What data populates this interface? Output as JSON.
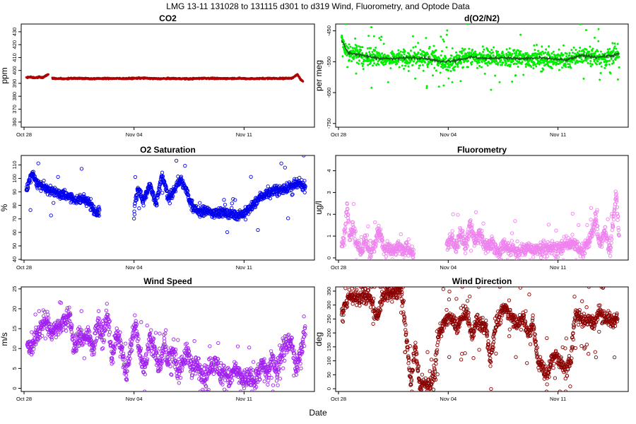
{
  "figure": {
    "title": "LMG   13-11     131028 to 131115     d301 to d319   Wind, Fluorometry, and Optode Data",
    "xlabel": "Date"
  },
  "chart_data": [
    {
      "id": "co2",
      "type": "scatter",
      "title": "CO2",
      "ylabel": "ppm",
      "color": "#b00000",
      "point_style": "filled",
      "ylim": [
        356,
        436
      ],
      "yticks": [
        360,
        370,
        380,
        390,
        400,
        410,
        420,
        430
      ],
      "ytick_labels": [
        "360",
        "370",
        "380",
        "390",
        "400",
        "410",
        "420",
        "430"
      ],
      "xlim": [
        0,
        18.3
      ],
      "xtick_values": [
        0,
        7,
        14
      ],
      "xtick_labels": [
        "Oct 28",
        "Nov 04",
        "Nov 11"
      ],
      "segments": [
        {
          "x": [
            0.15,
            0.4,
            0.7,
            1.0,
            1.2,
            1.4,
            1.55
          ],
          "y": [
            394.5,
            395,
            394.2,
            395,
            394.5,
            396,
            397
          ]
        },
        {
          "x": [
            1.8,
            2.5,
            3.5,
            4.5,
            5.5,
            6.5,
            7.5,
            8.5,
            9.5,
            10.5,
            11.5,
            12.5,
            13.5,
            14.5,
            15.5,
            16.5,
            17.1,
            17.4,
            17.6,
            17.75
          ],
          "y": [
            393.8,
            393.5,
            394.0,
            393.6,
            393.8,
            393.7,
            394.1,
            393.6,
            393.8,
            393.5,
            394.0,
            393.7,
            393.9,
            393.6,
            393.9,
            393.8,
            394.2,
            397.0,
            393.0,
            391.2
          ]
        }
      ],
      "noise": 0.4,
      "outlier_rate": 0
    },
    {
      "id": "o2n2",
      "type": "scatter",
      "title": "d(O2/N2)",
      "ylabel": "per meg",
      "color": "#00ee00",
      "point_style": "filled",
      "ylim": [
        -762,
        -428
      ],
      "yticks": [
        -450,
        -550,
        -650,
        -750
      ],
      "ytick_labels": [
        "-450",
        "-550",
        "-650",
        "-750"
      ],
      "xlim": [
        0,
        18.3
      ],
      "xtick_values": [
        0,
        7,
        14
      ],
      "xtick_labels": [
        "Oct 28",
        "Nov 04",
        "Nov 11"
      ],
      "segments": [
        {
          "x": [
            0.2,
            0.35,
            0.6,
            1.0,
            1.5,
            2.0,
            2.5,
            3.0,
            3.5,
            4.0,
            4.5,
            5.0,
            5.5,
            6.0,
            6.5,
            7.0,
            7.5,
            8.0,
            8.5,
            9.0,
            9.5,
            10.0,
            10.5,
            11.0,
            11.5,
            12.0,
            12.5,
            13.0,
            13.5,
            14.0,
            14.5,
            15.0,
            15.5,
            16.0,
            16.5,
            17.0,
            17.5,
            17.9
          ],
          "y": [
            -475,
            -505,
            -520,
            -528,
            -530,
            -535,
            -538,
            -540,
            -541,
            -539,
            -536,
            -540,
            -538,
            -535,
            -550,
            -558,
            -545,
            -540,
            -535,
            -545,
            -540,
            -538,
            -536,
            -540,
            -541,
            -540,
            -538,
            -543,
            -540,
            -542,
            -545,
            -540,
            -530,
            -528,
            -535,
            -540,
            -530,
            -522
          ]
        }
      ],
      "noise": 20,
      "outlier_rate": 0.07,
      "outlier_spread": 90,
      "trend_line": {
        "color": "#1a5a1a",
        "x": [
          0.2,
          0.6,
          1.5,
          2.5,
          3.5,
          4.5,
          5.5,
          6.5,
          7.5,
          8.5,
          9.5,
          10.5,
          11.5,
          12.5,
          13.5,
          14.5,
          15.5,
          16.5,
          17.5,
          17.9
        ],
        "y": [
          -480,
          -520,
          -530,
          -538,
          -541,
          -536,
          -538,
          -550,
          -545,
          -535,
          -540,
          -536,
          -541,
          -538,
          -540,
          -545,
          -530,
          -535,
          -530,
          -525
        ]
      }
    },
    {
      "id": "o2sat",
      "type": "scatter",
      "title": "O2 Saturation",
      "ylabel": "%",
      "color": "#0000ee",
      "point_style": "open",
      "ylim": [
        39.5,
        117
      ],
      "yticks": [
        40,
        50,
        60,
        70,
        80,
        90,
        100,
        110
      ],
      "ytick_labels": [
        "40",
        "50",
        "60",
        "70",
        "80",
        "90",
        "100",
        "110"
      ],
      "xlim": [
        0,
        18.3
      ],
      "xtick_values": [
        0,
        7,
        14
      ],
      "xtick_labels": [
        "Oct 28",
        "Nov 04",
        "Nov 11"
      ],
      "segments": [
        {
          "x": [
            0.15,
            0.3,
            0.5,
            0.7,
            1.0,
            1.5,
            2.0,
            2.5,
            3.0,
            3.5,
            4.0,
            4.3,
            4.6,
            4.8
          ],
          "y": [
            91,
            97,
            103,
            99,
            95,
            92,
            90,
            88,
            86,
            84,
            84,
            80,
            74,
            78
          ]
        },
        {
          "x": [
            7.0,
            7.1,
            7.3,
            7.6,
            8.0,
            8.4,
            8.8,
            9.2,
            9.6,
            10.0,
            10.4,
            10.8,
            11.2,
            11.6,
            12.0,
            12.5,
            13.0,
            13.5,
            14.0,
            14.5,
            15.0,
            15.5,
            16.0,
            16.5,
            17.0,
            17.5,
            17.9
          ],
          "y": [
            72,
            85,
            93,
            82,
            96,
            80,
            103,
            85,
            92,
            100,
            88,
            77,
            75,
            76,
            74,
            75,
            74,
            73,
            74,
            79,
            86,
            89,
            91,
            92,
            94,
            96,
            94
          ]
        }
      ],
      "noise": 2.5,
      "outlier_rate": 0.03,
      "outlier_spread": 25
    },
    {
      "id": "fluoro",
      "type": "scatter",
      "title": "Fluorometry",
      "ylabel": "ug/l",
      "color": "#ee82ee",
      "point_style": "open",
      "ylim": [
        -0.1,
        4.7
      ],
      "yticks": [
        0,
        1,
        2,
        3,
        4
      ],
      "ytick_labels": [
        "0",
        "1",
        "2",
        "3",
        "4"
      ],
      "xlim": [
        0,
        18.3
      ],
      "xtick_values": [
        0,
        7,
        14
      ],
      "xtick_labels": [
        "Oct 28",
        "Nov 04",
        "Nov 11"
      ],
      "segments": [
        {
          "x": [
            0.2,
            0.4,
            0.55,
            0.7,
            0.9,
            1.1,
            1.4,
            1.7,
            2.0,
            2.3,
            2.6,
            2.9,
            3.2,
            3.5,
            3.8,
            4.1,
            4.4,
            4.8
          ],
          "y": [
            0.6,
            1.2,
            2.6,
            0.9,
            1.5,
            0.7,
            0.3,
            0.8,
            0.2,
            0.6,
            1.3,
            0.3,
            0.5,
            0.2,
            0.6,
            0.3,
            0.5,
            0.2
          ]
        },
        {
          "x": [
            6.9,
            7.2,
            7.5,
            7.8,
            8.1,
            8.4,
            8.7,
            9.0,
            9.4,
            9.8,
            10.2,
            10.6,
            11.0,
            11.5,
            12.0,
            12.5,
            13.0,
            13.5,
            14.0,
            14.5,
            15.0,
            15.5,
            16.0,
            16.4,
            16.7,
            17.0,
            17.3,
            17.5,
            17.7,
            17.9
          ],
          "y": [
            0.5,
            0.9,
            0.4,
            1.2,
            0.5,
            1.5,
            0.7,
            1.1,
            0.5,
            0.7,
            0.3,
            0.6,
            0.4,
            0.3,
            0.5,
            0.3,
            0.4,
            0.5,
            0.4,
            0.6,
            0.7,
            0.3,
            0.8,
            1.8,
            0.6,
            1.2,
            0.4,
            1.5,
            3.0,
            0.9
          ]
        }
      ],
      "noise": 0.22,
      "outlier_rate": 0.05,
      "outlier_spread": 1.2
    },
    {
      "id": "wspd",
      "type": "scatter",
      "title": "Wind Speed",
      "ylabel": "m/s",
      "color": "#a020f0",
      "point_style": "open",
      "ylim": [
        -0.8,
        25.5
      ],
      "yticks": [
        0,
        5,
        10,
        15,
        20,
        25
      ],
      "ytick_labels": [
        "0",
        "5",
        "10",
        "15",
        "20",
        "25"
      ],
      "xlim": [
        0,
        18.3
      ],
      "xtick_values": [
        0,
        7,
        14
      ],
      "xtick_labels": [
        "Oct 28",
        "Nov 04",
        "Nov 11"
      ],
      "segments": [
        {
          "x": [
            0.2,
            0.5,
            0.8,
            1.1,
            1.4,
            1.7,
            2.0,
            2.3,
            2.6,
            2.9,
            3.2,
            3.5,
            3.8,
            4.1,
            4.4,
            4.7,
            5.0,
            5.3,
            5.6,
            5.9,
            6.2,
            6.5,
            6.8,
            7.1,
            7.4,
            7.7,
            8.0,
            8.3,
            8.6,
            8.9,
            9.2,
            9.5,
            9.8,
            10.1,
            10.4,
            10.7,
            11.0,
            11.3,
            11.6,
            11.9,
            12.2,
            12.5,
            12.8,
            13.1,
            13.4,
            13.7,
            14.0,
            14.3,
            14.6,
            14.9,
            15.2,
            15.5,
            15.8,
            16.1,
            16.4,
            16.7,
            17.0,
            17.3,
            17.6,
            17.9
          ],
          "y": [
            11,
            10,
            13,
            15,
            17,
            14,
            15,
            16,
            17,
            18,
            10,
            13,
            12,
            14,
            10,
            16,
            13,
            19,
            8,
            14,
            10,
            3,
            11,
            16,
            8,
            5,
            13,
            10,
            5,
            11,
            7,
            9,
            4,
            7,
            9,
            5,
            6,
            4,
            3,
            6,
            7,
            3,
            4,
            2,
            5,
            3,
            2,
            3,
            2,
            4,
            6,
            3,
            8,
            4,
            10,
            11,
            12,
            5,
            9,
            15
          ]
        }
      ],
      "noise": 1.8,
      "outlier_rate": 0.06,
      "outlier_spread": 8
    },
    {
      "id": "wdir",
      "type": "scatter",
      "title": "Wind Direction",
      "ylabel": "deg",
      "color": "#8b0000",
      "point_style": "open",
      "ylim": [
        -10,
        365
      ],
      "yticks": [
        0,
        50,
        100,
        150,
        200,
        250,
        300,
        350
      ],
      "ytick_labels": [
        "0",
        "50",
        "100",
        "150",
        "200",
        "250",
        "300",
        "350"
      ],
      "xlim": [
        0,
        18.3
      ],
      "xtick_values": [
        0,
        7,
        14
      ],
      "xtick_labels": [
        "Oct 28",
        "Nov 04",
        "Nov 11"
      ],
      "segments": [
        {
          "x": [
            0.2,
            0.4,
            0.7,
            1.0,
            1.3,
            1.6,
            1.9,
            2.2,
            2.5,
            2.8,
            3.1,
            3.4,
            3.7,
            4.0,
            4.3,
            4.6,
            4.9,
            5.2,
            5.5,
            5.8,
            6.1,
            6.4,
            6.7,
            7.0,
            7.3,
            7.6,
            7.9,
            8.2,
            8.5,
            8.8,
            9.1,
            9.4,
            9.7,
            10.0,
            10.3,
            10.6,
            10.9,
            11.2,
            11.5,
            11.8,
            12.1,
            12.4,
            12.7,
            13.0,
            13.3,
            13.6,
            13.9,
            14.2,
            14.5,
            14.8,
            15.1,
            15.4,
            15.7,
            16.0,
            16.3,
            16.6,
            16.9,
            17.2,
            17.5,
            17.8
          ],
          "y": [
            270,
            300,
            335,
            325,
            320,
            330,
            335,
            300,
            250,
            330,
            345,
            340,
            350,
            355,
            200,
            20,
            150,
            10,
            20,
            15,
            40,
            200,
            230,
            260,
            240,
            220,
            260,
            270,
            190,
            240,
            230,
            220,
            100,
            230,
            260,
            290,
            270,
            250,
            230,
            260,
            190,
            240,
            100,
            80,
            40,
            110,
            120,
            90,
            60,
            100,
            270,
            260,
            240,
            250,
            230,
            280,
            260,
            250,
            240,
            260
          ]
        }
      ],
      "noise": 18,
      "outlier_rate": 0.1,
      "outlier_spread": 140
    }
  ]
}
